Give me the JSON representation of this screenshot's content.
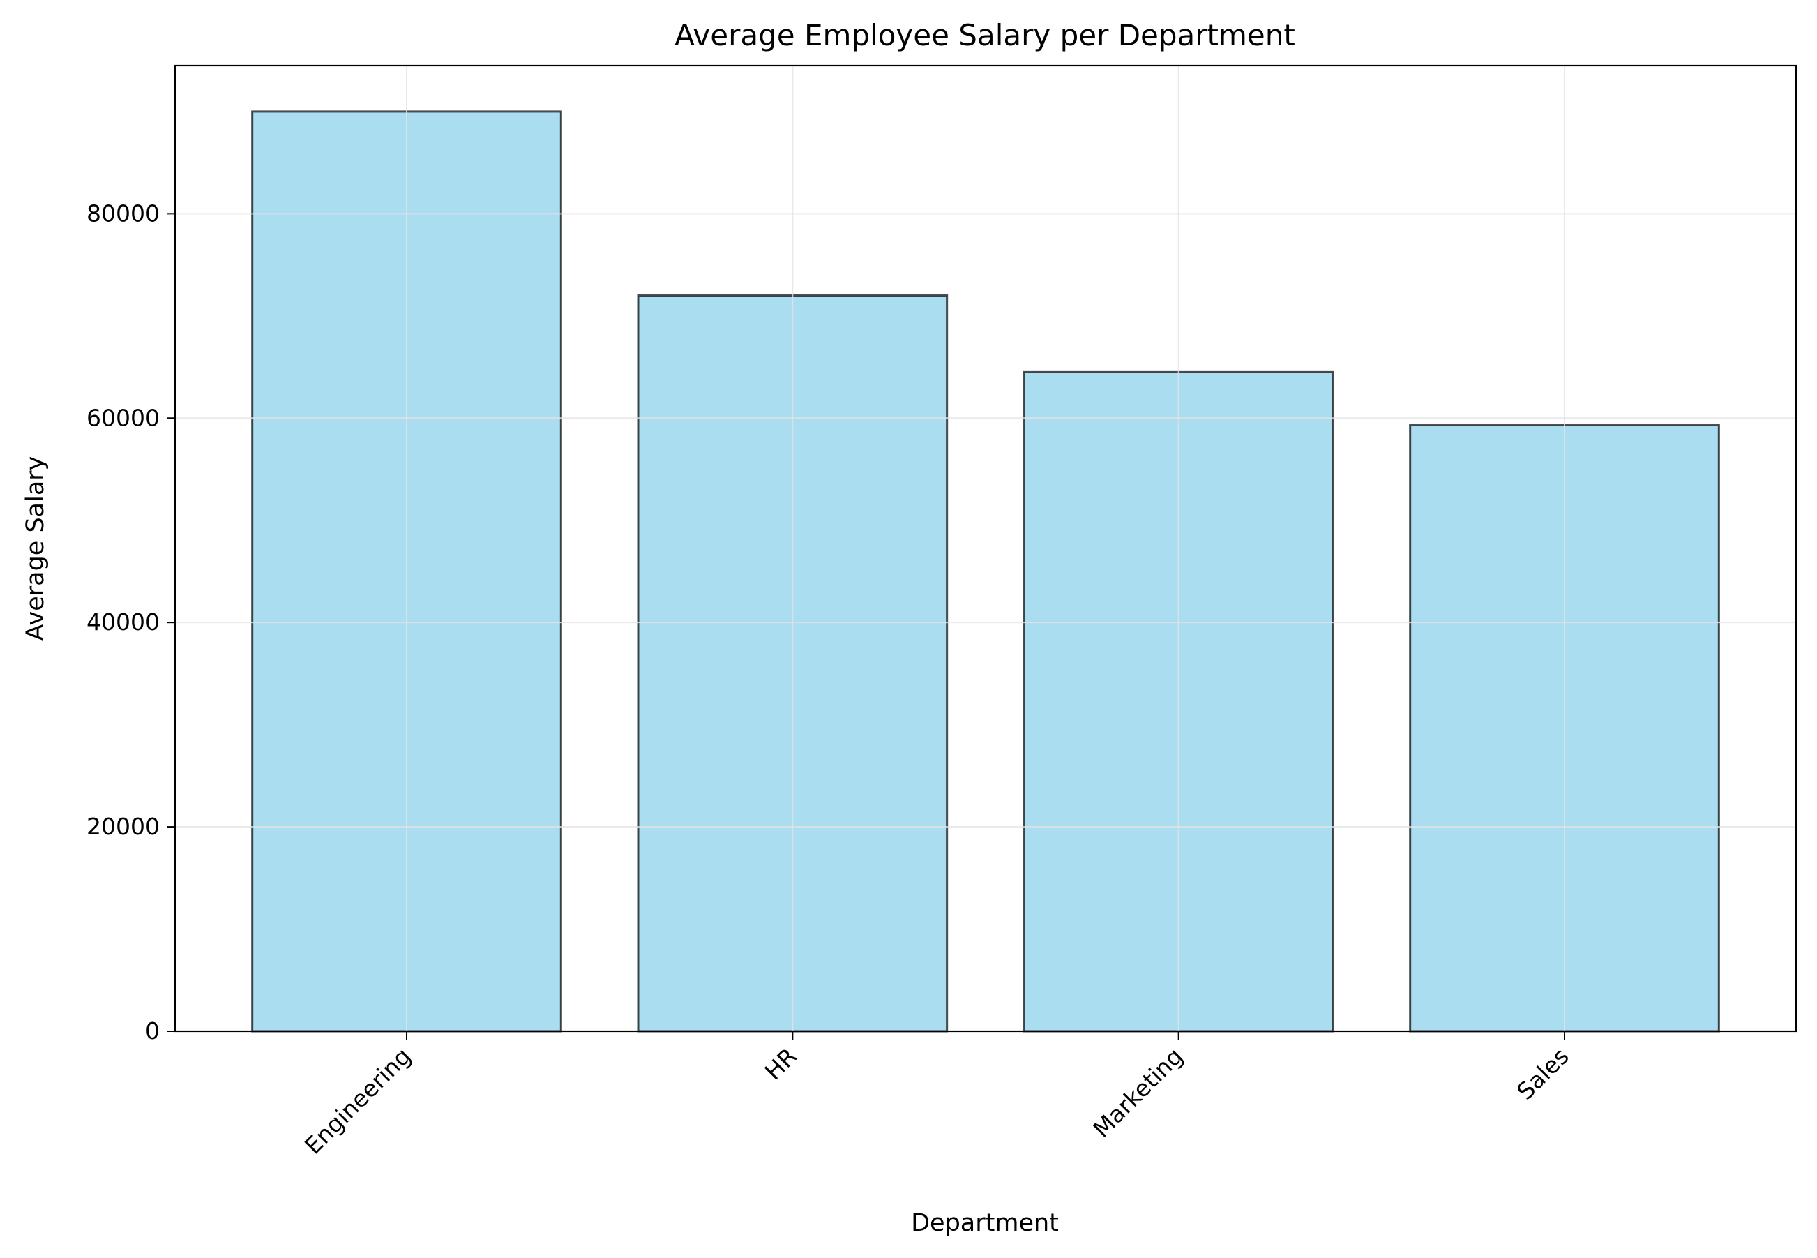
{
  "chart_data": {
    "type": "bar",
    "title": "Average Employee Salary per Department",
    "xlabel": "Department",
    "ylabel": "Average Salary",
    "categories": [
      "Engineering",
      "HR",
      "Marketing",
      "Sales"
    ],
    "values": [
      90000,
      72000,
      64500,
      59300
    ],
    "ylim": [
      0,
      94500
    ],
    "yticks": [
      0,
      20000,
      40000,
      60000,
      80000
    ],
    "grid": true,
    "legend": "none",
    "colors": {
      "bar_fill": "#87ceeb",
      "bar_fill_opacity": 0.7,
      "bar_edge": "#000000",
      "grid": "#e3e3e3",
      "axes": "#000000"
    }
  }
}
